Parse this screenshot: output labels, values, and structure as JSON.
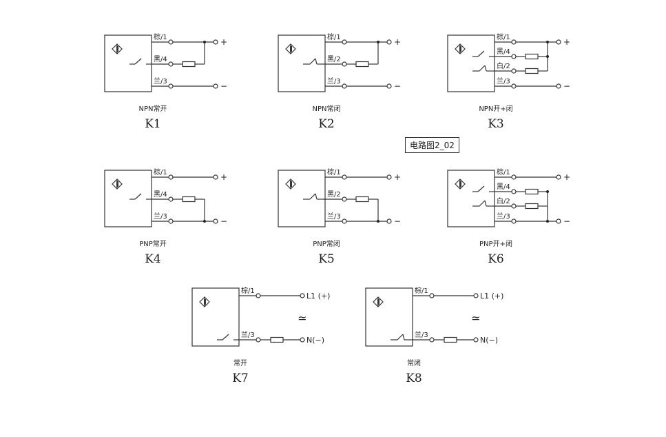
{
  "tooltip": "电路图2_02",
  "diagrams": [
    {
      "code": "K1",
      "caption": "NPN常开",
      "kind": "npn",
      "switches": [
        "no"
      ],
      "wires": [
        "棕/1",
        "黑/4",
        "兰/3"
      ],
      "plus": "+",
      "minus": "−"
    },
    {
      "code": "K2",
      "caption": "NPN常闭",
      "kind": "npn",
      "switches": [
        "nc"
      ],
      "wires": [
        "棕/1",
        "黑/2",
        "兰/3"
      ],
      "plus": "+",
      "minus": "−"
    },
    {
      "code": "K3",
      "caption": "NPN开+闭",
      "kind": "npn",
      "switches": [
        "no",
        "nc"
      ],
      "wires": [
        "棕/1",
        "黑/4",
        "白/2",
        "兰/3"
      ],
      "plus": "+",
      "minus": "−"
    },
    {
      "code": "K4",
      "caption": "PNP常开",
      "kind": "pnp",
      "switches": [
        "no"
      ],
      "wires": [
        "棕/1",
        "黑/4",
        "兰/3"
      ],
      "plus": "+",
      "minus": "−"
    },
    {
      "code": "K5",
      "caption": "PNP常闭",
      "kind": "pnp",
      "switches": [
        "nc"
      ],
      "wires": [
        "棕/1",
        "黑/2",
        "兰/3"
      ],
      "plus": "+",
      "minus": "−"
    },
    {
      "code": "K6",
      "caption": "PNP开+闭",
      "kind": "pnp",
      "switches": [
        "no",
        "nc"
      ],
      "wires": [
        "棕/1",
        "黑/4",
        "白/2",
        "兰/3"
      ],
      "plus": "+",
      "minus": "−"
    },
    {
      "code": "K7",
      "caption": "常开",
      "kind": "ac",
      "switches": [
        "no"
      ],
      "wires": [
        "棕/1",
        "兰/3"
      ],
      "terminals": [
        "L1 (+)",
        "N(−)"
      ],
      "ac_symbol": "≃"
    },
    {
      "code": "K8",
      "caption": "常闭",
      "kind": "ac",
      "switches": [
        "nc"
      ],
      "wires": [
        "棕/1",
        "兰/3"
      ],
      "terminals": [
        "L1 (+)",
        "N(−)"
      ],
      "ac_symbol": "≃"
    }
  ]
}
